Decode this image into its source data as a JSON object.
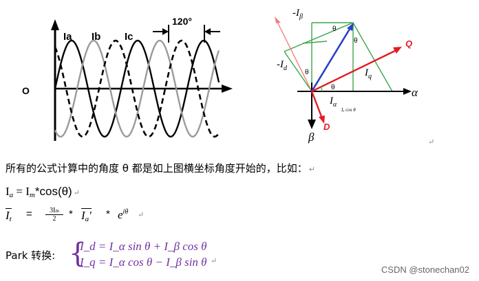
{
  "waveform": {
    "origin_label": "O",
    "labels": {
      "ia": "Ia",
      "ib": "Ib",
      "ic": "Ic"
    },
    "phase_label": "120°"
  },
  "phasor": {
    "neg_i_beta": "-I",
    "neg_i_beta_sub": "β",
    "neg_i_d": "-I",
    "neg_i_d_sub": "d",
    "i_q": "I",
    "i_q_sub": "q",
    "i_alpha": "I",
    "i_alpha_sub": "α",
    "cos_label": "Iₐ cos θ",
    "theta": "θ",
    "q_label": "Q",
    "d_label": "D",
    "alpha_label": "α",
    "beta_label": "β",
    "colors": {
      "green": "#3aa64a",
      "red": "#e31b23",
      "blue": "#2b3fc7",
      "salmon": "#f08080"
    }
  },
  "text": {
    "intro": "所有的公式计算中的角度 θ 都是如上图横坐标角度开始的，比如：",
    "para_mark": "↵",
    "eq1_lhs": "I",
    "eq1_lhs_sub": "a",
    "eq1_eq": " = I",
    "eq1_sub2": "m",
    "eq1_rest": "*cos(θ)",
    "eq2_lhs": "I",
    "eq2_lhs_sub": "t",
    "eq2_equals": "=",
    "eq2_num": "3I",
    "eq2_num_sub": "m",
    "eq2_den": "2",
    "eq2_star1": "*",
    "eq2_vec": "I",
    "eq2_vec_sub": "a",
    "eq2_prime": "′",
    "eq2_star2": "*",
    "eq2_exp_base": "e",
    "eq2_exp_sup": "iθ",
    "park_label": "Park 转换:",
    "park_line1": "I_d = I_α sin θ + I_β cos θ",
    "park_line2": "I_q = I_α cos θ − I_β sin θ",
    "watermark": "CSDN @stonechan02"
  }
}
